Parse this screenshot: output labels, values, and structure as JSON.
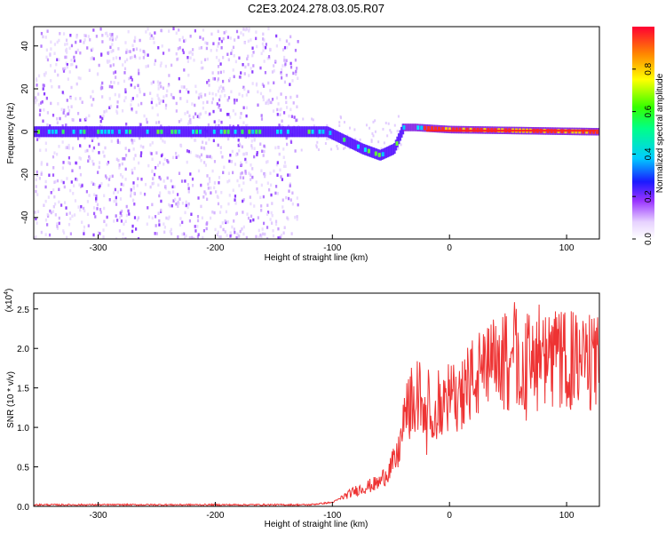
{
  "title": "C2E3.2024.278.03.05.R07",
  "chart_data": [
    {
      "type": "heatmap",
      "xlabel": "Height of straight line (km)",
      "ylabel": "Frequency (Hz)",
      "xlim": [
        -355,
        128
      ],
      "ylim": [
        -50,
        49
      ],
      "xticks": [
        -300,
        -200,
        -100,
        0,
        100
      ],
      "yticks": [
        -40,
        -20,
        0,
        20,
        40
      ],
      "colorbar": {
        "label": "Normalized spectral amplitude",
        "range": [
          0,
          1
        ],
        "ticks": [
          "0.0",
          "0.2",
          "0.4",
          "0.6",
          "0.8"
        ],
        "colormap": "rainbow (purple low, red high)"
      },
      "ridge": [
        {
          "x": -350,
          "y": 0
        },
        {
          "x": -130,
          "y": 0
        },
        {
          "x": -105,
          "y": 0
        },
        {
          "x": -90,
          "y": -4
        },
        {
          "x": -75,
          "y": -8
        },
        {
          "x": -60,
          "y": -11
        },
        {
          "x": -48,
          "y": -8
        },
        {
          "x": -40,
          "y": 2
        },
        {
          "x": -30,
          "y": 2
        },
        {
          "x": 0,
          "y": 1
        },
        {
          "x": 125,
          "y": 0
        }
      ],
      "noise_region": {
        "from": -355,
        "to": -130
      },
      "grid": false
    },
    {
      "type": "line",
      "xlabel": "Height of straight line (km)",
      "ylabel": "SNR (10 * v/v)",
      "multiplier": "(x10",
      "multiplier_exp": "4",
      "xlim": [
        -355,
        128
      ],
      "ylim": [
        0,
        2.7
      ],
      "xticks": [
        -300,
        -200,
        -100,
        0,
        100
      ],
      "yticks": [
        "0.0",
        "0.5",
        "1.0",
        "1.5",
        "2.0",
        "2.5"
      ],
      "series": [
        {
          "color": "#ee3333",
          "envelope": [
            {
              "x": -355,
              "y": 0.02
            },
            {
              "x": -120,
              "y": 0.02
            },
            {
              "x": -100,
              "y": 0.05
            },
            {
              "x": -80,
              "y": 0.2
            },
            {
              "x": -60,
              "y": 0.3
            },
            {
              "x": -45,
              "y": 0.6
            },
            {
              "x": -35,
              "y": 1.3
            },
            {
              "x": -25,
              "y": 1.4
            },
            {
              "x": -15,
              "y": 1.25
            },
            {
              "x": 0,
              "y": 1.35
            },
            {
              "x": 20,
              "y": 1.6
            },
            {
              "x": 40,
              "y": 1.8
            },
            {
              "x": 60,
              "y": 1.85
            },
            {
              "x": 80,
              "y": 1.8
            },
            {
              "x": 100,
              "y": 1.85
            },
            {
              "x": 128,
              "y": 1.8
            }
          ]
        }
      ],
      "grid": false
    }
  ]
}
